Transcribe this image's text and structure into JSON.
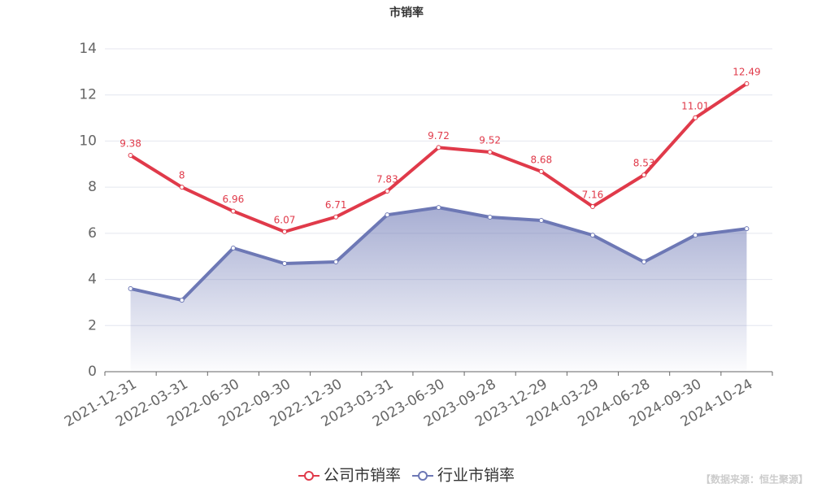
{
  "chart_data": {
    "type": "line",
    "title": "市销率",
    "categories": [
      "2021-12-31",
      "2022-03-31",
      "2022-06-30",
      "2022-09-30",
      "2022-12-30",
      "2023-03-31",
      "2023-06-30",
      "2023-09-28",
      "2023-12-29",
      "2024-03-29",
      "2024-06-28",
      "2024-09-30",
      "2024-10-24"
    ],
    "series": [
      {
        "name": "公司市销率",
        "color": "#e03a4a",
        "values": [
          9.38,
          8,
          6.96,
          6.07,
          6.71,
          7.83,
          9.72,
          9.52,
          8.68,
          7.16,
          8.53,
          11.01,
          12.49
        ],
        "labels": true
      },
      {
        "name": "行业市销率",
        "color": "#6d78b5",
        "values": [
          3.6,
          3.1,
          5.36,
          4.69,
          4.76,
          6.8,
          7.12,
          6.7,
          6.56,
          5.92,
          4.76,
          5.92,
          6.2
        ],
        "area": true
      }
    ],
    "ylim": [
      0,
      14
    ],
    "yticks": [
      0,
      2,
      4,
      6,
      8,
      10,
      12,
      14
    ],
    "grid": true,
    "source": "【数据来源：恒生聚源】"
  }
}
